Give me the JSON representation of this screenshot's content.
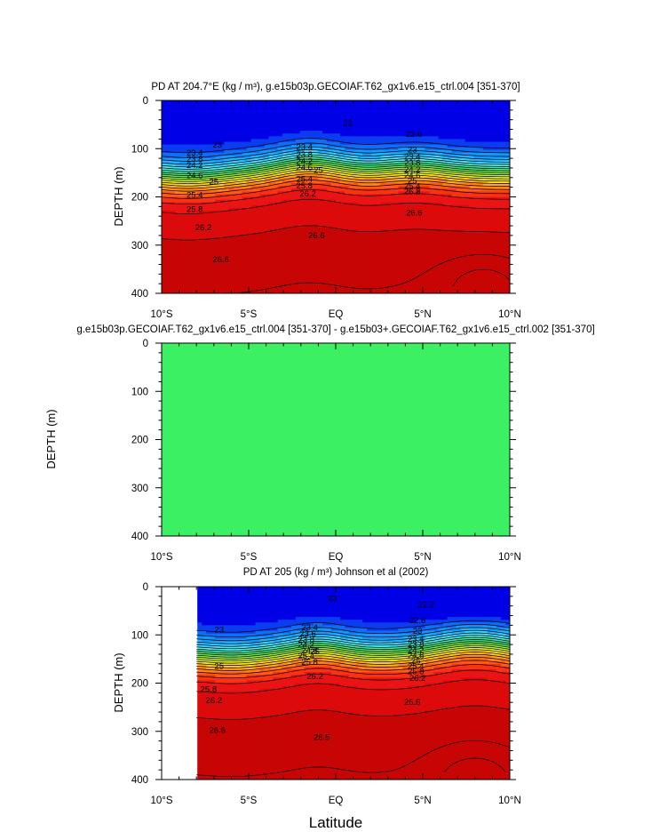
{
  "x_label": "Latitude",
  "x_ticks": [
    "10°S",
    "5°S",
    "EQ",
    "5°N",
    "10°N"
  ],
  "y_ticks": [
    "0",
    "100",
    "200",
    "300",
    "400"
  ],
  "colors": {
    "density_scale": [
      "#0000e6",
      "#0a3cf0",
      "#0f6ef5",
      "#1496fa",
      "#1eb4ff",
      "#3cd2ff",
      "#50e6f0",
      "#46e6b4",
      "#3cdc78",
      "#64e650",
      "#96eb3c",
      "#c8f032",
      "#f0f028",
      "#ffd21e",
      "#ffaa1e",
      "#ff8219",
      "#ff5a14",
      "#fa3214",
      "#eb1414",
      "#dc0a0a",
      "#c80505"
    ],
    "difference_fill": "#3cf064"
  },
  "chart_data": [
    {
      "type": "contour",
      "title": "PD AT 204.7°E (kg / m³), g.e15b03p.GECOIAF.T62_gx1v6.e15_ctrl.004 [351-370]",
      "ylabel": "DEPTH (m)",
      "xlim": [
        -10,
        10
      ],
      "ylim": [
        400,
        0
      ],
      "contour_interval": 0.2,
      "contour_labels": [
        {
          "lat": 0.7,
          "depth": 47,
          "value": "23"
        },
        {
          "lat": -6.8,
          "depth": 92,
          "value": "23"
        },
        {
          "lat": 4.5,
          "depth": 70,
          "value": "22.6"
        },
        {
          "lat": -8.1,
          "depth": 109,
          "value": "23.4"
        },
        {
          "lat": -8.1,
          "depth": 122,
          "value": "23.8"
        },
        {
          "lat": -8.1,
          "depth": 135,
          "value": "24.2"
        },
        {
          "lat": -8.1,
          "depth": 156,
          "value": "24.6"
        },
        {
          "lat": -7.0,
          "depth": 169,
          "value": "25"
        },
        {
          "lat": -8.1,
          "depth": 196,
          "value": "25.4"
        },
        {
          "lat": -8.1,
          "depth": 226,
          "value": "25.8"
        },
        {
          "lat": -7.6,
          "depth": 264,
          "value": "26.2"
        },
        {
          "lat": -6.6,
          "depth": 330,
          "value": "26.6"
        },
        {
          "lat": -1.8,
          "depth": 97,
          "value": "23.4"
        },
        {
          "lat": -1.8,
          "depth": 112,
          "value": "23.8"
        },
        {
          "lat": -1.8,
          "depth": 126,
          "value": "24.2"
        },
        {
          "lat": -1.8,
          "depth": 139,
          "value": "24.6"
        },
        {
          "lat": -1.0,
          "depth": 145,
          "value": "25"
        },
        {
          "lat": -1.8,
          "depth": 163,
          "value": "25.4"
        },
        {
          "lat": -1.8,
          "depth": 177,
          "value": "25.8"
        },
        {
          "lat": -1.6,
          "depth": 194,
          "value": "26.2"
        },
        {
          "lat": -1.1,
          "depth": 280,
          "value": "26.6"
        },
        {
          "lat": 4.4,
          "depth": 102,
          "value": "23"
        },
        {
          "lat": 4.4,
          "depth": 117,
          "value": "23.4"
        },
        {
          "lat": 4.4,
          "depth": 130,
          "value": "23.8"
        },
        {
          "lat": 4.4,
          "depth": 144,
          "value": "24.2"
        },
        {
          "lat": 4.4,
          "depth": 156,
          "value": "24.6"
        },
        {
          "lat": 4.4,
          "depth": 167,
          "value": "25"
        },
        {
          "lat": 4.4,
          "depth": 178,
          "value": "25.4"
        },
        {
          "lat": 4.4,
          "depth": 189,
          "value": "25.8"
        },
        {
          "lat": 4.4,
          "depth": 189,
          "value": "26.2"
        },
        {
          "lat": 4.5,
          "depth": 233,
          "value": "26.6"
        }
      ]
    },
    {
      "type": "contour",
      "title": "g.e15b03p.GECOIAF.T62_gx1v6.e15_ctrl.004 [351-370] - g.e15b03+.GECOIAF.T62_gx1v6.e15_ctrl.002 [351-370]",
      "ylabel": "DEPTH (m)",
      "xlim": [
        -10,
        10
      ],
      "ylim": [
        400,
        0
      ],
      "note": "field uniform (zero difference)"
    },
    {
      "type": "contour",
      "title": "PD AT 205 (kg / m³) Johnson et al (2002)",
      "ylabel": "DEPTH (m)",
      "xlim": [
        -10,
        10
      ],
      "ylim": [
        400,
        0
      ],
      "data_xrange": [
        -8,
        10
      ],
      "contour_interval": 0.2,
      "contour_labels": [
        {
          "lat": -0.2,
          "depth": 25,
          "value": "23"
        },
        {
          "lat": 5.2,
          "depth": 38,
          "value": "22.2"
        },
        {
          "lat": -6.7,
          "depth": 89,
          "value": "23"
        },
        {
          "lat": 4.7,
          "depth": 70,
          "value": "22.6"
        },
        {
          "lat": 4.7,
          "depth": 92,
          "value": "23"
        },
        {
          "lat": -1.5,
          "depth": 85,
          "value": "23.4"
        },
        {
          "lat": -1.6,
          "depth": 98,
          "value": "23.6"
        },
        {
          "lat": -1.7,
          "depth": 110,
          "value": "23.8"
        },
        {
          "lat": -1.7,
          "depth": 121,
          "value": "24.2"
        },
        {
          "lat": -1.5,
          "depth": 133,
          "value": "24.6"
        },
        {
          "lat": -1.2,
          "depth": 135,
          "value": "25"
        },
        {
          "lat": -1.7,
          "depth": 144,
          "value": "25.4"
        },
        {
          "lat": -1.5,
          "depth": 157,
          "value": "25.8"
        },
        {
          "lat": -1.2,
          "depth": 186,
          "value": "26.2"
        },
        {
          "lat": 4.6,
          "depth": 109,
          "value": "23.4"
        },
        {
          "lat": 4.6,
          "depth": 120,
          "value": "23.8"
        },
        {
          "lat": 4.6,
          "depth": 132,
          "value": "24.2"
        },
        {
          "lat": 4.6,
          "depth": 143,
          "value": "24.6"
        },
        {
          "lat": 4.6,
          "depth": 154,
          "value": "25"
        },
        {
          "lat": 4.6,
          "depth": 165,
          "value": "25.4"
        },
        {
          "lat": 4.6,
          "depth": 176,
          "value": "25.8"
        },
        {
          "lat": 4.7,
          "depth": 190,
          "value": "26.2"
        },
        {
          "lat": -6.7,
          "depth": 165,
          "value": "25"
        },
        {
          "lat": -7.3,
          "depth": 213,
          "value": "25.8"
        },
        {
          "lat": -7.0,
          "depth": 236,
          "value": "26.2"
        },
        {
          "lat": -6.8,
          "depth": 298,
          "value": "26.6"
        },
        {
          "lat": 4.4,
          "depth": 240,
          "value": "26.6"
        },
        {
          "lat": -0.8,
          "depth": 312,
          "value": "26.5"
        }
      ]
    }
  ]
}
